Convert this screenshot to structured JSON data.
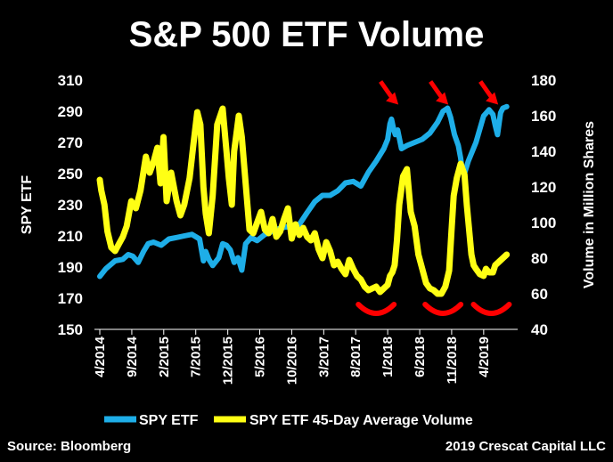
{
  "chart_data": {
    "type": "line",
    "title": "S&P 500 ETF Volume",
    "ylabel_left": "SPY ETF",
    "ylabel_right": "Volume in Million Shares",
    "ylim_left": [
      150,
      310
    ],
    "ylim_right": [
      40,
      180
    ],
    "yticks_left": [
      150,
      170,
      190,
      210,
      230,
      250,
      270,
      290,
      310
    ],
    "yticks_right": [
      40,
      60,
      80,
      100,
      120,
      140,
      160,
      180
    ],
    "xticks": [
      {
        "t": 2014.25,
        "label": "4/2014"
      },
      {
        "t": 2014.667,
        "label": "9/2014"
      },
      {
        "t": 2015.083,
        "label": "2/2015"
      },
      {
        "t": 2015.5,
        "label": "7/2015"
      },
      {
        "t": 2015.917,
        "label": "12/2015"
      },
      {
        "t": 2016.333,
        "label": "5/2016"
      },
      {
        "t": 2016.75,
        "label": "10/2016"
      },
      {
        "t": 2017.167,
        "label": "3/2017"
      },
      {
        "t": 2017.583,
        "label": "8/2017"
      },
      {
        "t": 2018.0,
        "label": "1/2018"
      },
      {
        "t": 2018.417,
        "label": "6/2018"
      },
      {
        "t": 2018.833,
        "label": "11/2018"
      },
      {
        "t": 2019.25,
        "label": "4/2019"
      }
    ],
    "xlim": [
      2014.25,
      2019.6
    ],
    "series": [
      {
        "name": "SPY ETF",
        "axis": "left",
        "color": "#1eaee8",
        "t": [
          2014.25,
          2014.33,
          2014.45,
          2014.55,
          2014.62,
          2014.68,
          2014.75,
          2014.82,
          2014.88,
          2014.95,
          2015.05,
          2015.15,
          2015.25,
          2015.35,
          2015.45,
          2015.55,
          2015.6,
          2015.63,
          2015.67,
          2015.72,
          2015.8,
          2015.85,
          2015.9,
          2015.95,
          2016.0,
          2016.05,
          2016.1,
          2016.15,
          2016.22,
          2016.3,
          2016.4,
          2016.5,
          2016.6,
          2016.7,
          2016.8,
          2016.87,
          2016.95,
          2017.05,
          2017.15,
          2017.25,
          2017.35,
          2017.45,
          2017.55,
          2017.65,
          2017.75,
          2017.85,
          2017.95,
          2018.0,
          2018.03,
          2018.05,
          2018.08,
          2018.1,
          2018.13,
          2018.18,
          2018.25,
          2018.35,
          2018.45,
          2018.55,
          2018.65,
          2018.72,
          2018.75,
          2018.78,
          2018.82,
          2018.87,
          2018.92,
          2018.95,
          2018.97,
          2019.0,
          2019.05,
          2019.15,
          2019.25,
          2019.32,
          2019.37,
          2019.4,
          2019.43,
          2019.47,
          2019.5,
          2019.55
        ],
        "values": [
          184,
          189,
          194,
          195,
          198,
          197,
          193,
          200,
          205,
          206,
          204,
          208,
          209,
          210,
          211,
          208,
          194,
          200,
          195,
          191,
          196,
          205,
          204,
          201,
          193,
          196,
          188,
          205,
          209,
          207,
          211,
          213,
          215,
          216,
          214,
          219,
          225,
          232,
          236,
          236,
          239,
          244,
          245,
          242,
          251,
          258,
          266,
          272,
          282,
          285,
          278,
          275,
          278,
          266,
          268,
          270,
          272,
          276,
          283,
          290,
          291,
          292,
          286,
          275,
          268,
          260,
          252,
          250,
          258,
          270,
          287,
          291,
          288,
          281,
          275,
          289,
          292,
          293
        ]
      },
      {
        "name": "SPY ETF 45-Day Average Volume",
        "axis": "right",
        "color": "#ffff14",
        "t": [
          2014.25,
          2014.27,
          2014.31,
          2014.35,
          2014.4,
          2014.45,
          2014.5,
          2014.55,
          2014.6,
          2014.66,
          2014.72,
          2014.78,
          2014.85,
          2014.9,
          2014.95,
          2015.0,
          2015.04,
          2015.08,
          2015.12,
          2015.18,
          2015.25,
          2015.3,
          2015.35,
          2015.42,
          2015.47,
          2015.52,
          2015.56,
          2015.6,
          2015.63,
          2015.67,
          2015.72,
          2015.78,
          2015.85,
          2015.9,
          2015.93,
          2015.97,
          2016.0,
          2016.03,
          2016.06,
          2016.1,
          2016.15,
          2016.2,
          2016.25,
          2016.3,
          2016.35,
          2016.4,
          2016.45,
          2016.5,
          2016.55,
          2016.6,
          2016.65,
          2016.7,
          2016.75,
          2016.8,
          2016.85,
          2016.9,
          2016.95,
          2017.0,
          2017.05,
          2017.1,
          2017.15,
          2017.2,
          2017.25,
          2017.3,
          2017.35,
          2017.4,
          2017.45,
          2017.5,
          2017.55,
          2017.6,
          2017.65,
          2017.7,
          2017.75,
          2017.8,
          2017.85,
          2017.9,
          2017.95,
          2018.0,
          2018.03,
          2018.06,
          2018.09,
          2018.12,
          2018.15,
          2018.2,
          2018.25,
          2018.3,
          2018.35,
          2018.4,
          2018.45,
          2018.5,
          2018.55,
          2018.6,
          2018.65,
          2018.7,
          2018.75,
          2018.8,
          2018.83,
          2018.86,
          2018.9,
          2018.95,
          2019.0,
          2019.03,
          2019.06,
          2019.09,
          2019.12,
          2019.15,
          2019.2,
          2019.25,
          2019.28,
          2019.32,
          2019.37,
          2019.4,
          2019.45,
          2019.5,
          2019.55
        ],
        "values": [
          124,
          118,
          110,
          95,
          86,
          84,
          88,
          92,
          98,
          112,
          108,
          118,
          137,
          128,
          134,
          142,
          122,
          148,
          112,
          128,
          112,
          104,
          110,
          125,
          144,
          162,
          155,
          120,
          105,
          94,
          115,
          155,
          164,
          140,
          125,
          110,
          140,
          150,
          160,
          148,
          122,
          96,
          94,
          100,
          106,
          96,
          94,
          102,
          92,
          95,
          102,
          108,
          91,
          99,
          93,
          97,
          92,
          90,
          94,
          85,
          80,
          89,
          84,
          76,
          78,
          74,
          71,
          79,
          74,
          70,
          68,
          64,
          62,
          63,
          64,
          61,
          63,
          65,
          70,
          72,
          76,
          90,
          110,
          126,
          130,
          106,
          98,
          82,
          74,
          66,
          63,
          62,
          60,
          60,
          64,
          73,
          95,
          115,
          125,
          133,
          127,
          110,
          96,
          82,
          76,
          74,
          71,
          70,
          74,
          72,
          72,
          76,
          78,
          80,
          82
        ]
      }
    ],
    "annotations": [
      "arrows at 2018 peaks",
      "arcs at volume troughs"
    ]
  },
  "legend": {
    "items": [
      {
        "label": "SPY ETF",
        "color": "#1eaee8"
      },
      {
        "label": "SPY ETF 45-Day Average Volume",
        "color": "#ffff14"
      }
    ]
  },
  "footer": {
    "source": "Source: Bloomberg",
    "credit": "2019 Crescat Capital LLC"
  },
  "colors": {
    "background": "#000000",
    "text": "#ffffff",
    "arrow": "#ff0000"
  }
}
